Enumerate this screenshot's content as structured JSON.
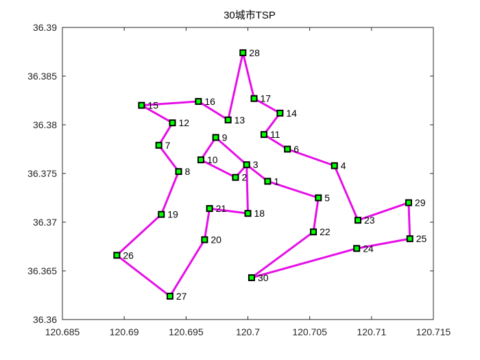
{
  "chart_data": {
    "type": "line",
    "title": "30城市TSP",
    "xlabel": "",
    "ylabel": "",
    "xlim": [
      120.685,
      120.715
    ],
    "ylim": [
      36.36,
      36.39
    ],
    "x_ticks": [
      "120.685",
      "120.69",
      "120.695",
      "120.7",
      "120.705",
      "120.71",
      "120.715"
    ],
    "y_ticks": [
      "36.36",
      "36.365",
      "36.37",
      "36.375",
      "36.38",
      "36.385",
      "36.39"
    ],
    "grid": false,
    "legend": "none",
    "colors": {
      "route": "#e60fe6",
      "marker_fill": "#00ff00",
      "marker_edge": "#000000",
      "axis": "#262626"
    },
    "cities": [
      {
        "id": "1",
        "x": 120.7016,
        "y": 36.3742
      },
      {
        "id": "2",
        "x": 120.699,
        "y": 36.3746
      },
      {
        "id": "3",
        "x": 120.6999,
        "y": 36.3759
      },
      {
        "id": "4",
        "x": 120.707,
        "y": 36.3758
      },
      {
        "id": "5",
        "x": 120.7057,
        "y": 36.3725
      },
      {
        "id": "6",
        "x": 120.7032,
        "y": 36.3775
      },
      {
        "id": "7",
        "x": 120.6928,
        "y": 36.3779
      },
      {
        "id": "8",
        "x": 120.6944,
        "y": 36.3752
      },
      {
        "id": "9",
        "x": 120.6974,
        "y": 36.3787
      },
      {
        "id": "10",
        "x": 120.6962,
        "y": 36.3764
      },
      {
        "id": "11",
        "x": 120.7013,
        "y": 36.379
      },
      {
        "id": "12",
        "x": 120.6939,
        "y": 36.3802
      },
      {
        "id": "13",
        "x": 120.6984,
        "y": 36.3805
      },
      {
        "id": "14",
        "x": 120.7026,
        "y": 36.3812
      },
      {
        "id": "15",
        "x": 120.6914,
        "y": 36.382
      },
      {
        "id": "16",
        "x": 120.696,
        "y": 36.3824
      },
      {
        "id": "17",
        "x": 120.7005,
        "y": 36.3827
      },
      {
        "id": "18",
        "x": 120.7,
        "y": 36.3709
      },
      {
        "id": "19",
        "x": 120.693,
        "y": 36.3708
      },
      {
        "id": "20",
        "x": 120.6965,
        "y": 36.3682
      },
      {
        "id": "21",
        "x": 120.6969,
        "y": 36.3714
      },
      {
        "id": "22",
        "x": 120.7053,
        "y": 36.369
      },
      {
        "id": "23",
        "x": 120.7089,
        "y": 36.3702
      },
      {
        "id": "24",
        "x": 120.7088,
        "y": 36.3673
      },
      {
        "id": "25",
        "x": 120.7131,
        "y": 36.3683
      },
      {
        "id": "26",
        "x": 120.6894,
        "y": 36.3666
      },
      {
        "id": "27",
        "x": 120.6937,
        "y": 36.3624
      },
      {
        "id": "28",
        "x": 120.6996,
        "y": 36.3874
      },
      {
        "id": "29",
        "x": 120.713,
        "y": 36.372
      },
      {
        "id": "30",
        "x": 120.7003,
        "y": 36.3643
      }
    ],
    "route": [
      "28",
      "17",
      "14",
      "11",
      "6",
      "4",
      "23",
      "29",
      "25",
      "24",
      "30",
      "22",
      "5",
      "1",
      "3",
      "9",
      "10",
      "2",
      "3",
      "18",
      "21",
      "20",
      "27",
      "26",
      "19",
      "8",
      "7",
      "12",
      "15",
      "16",
      "13",
      "28"
    ]
  }
}
